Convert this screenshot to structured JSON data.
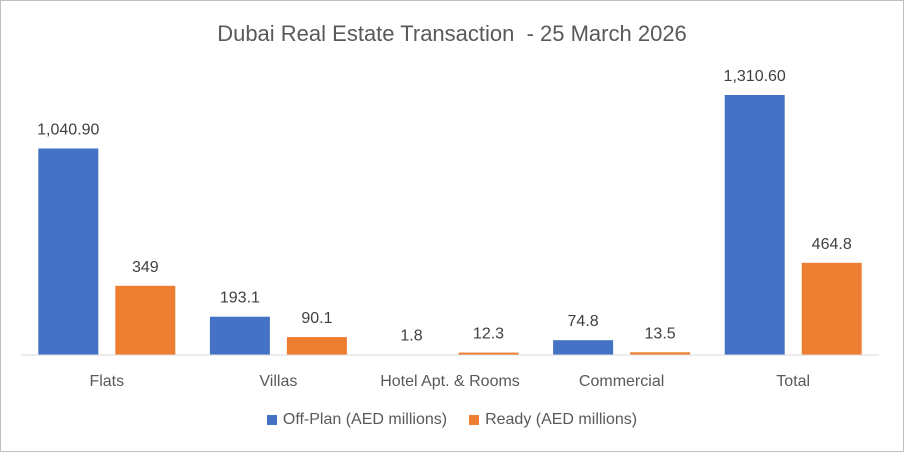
{
  "chart_data": {
    "type": "bar",
    "title": "Dubai Real Estate Transaction  - 25 March 2026",
    "categories": [
      "Flats",
      "Villas",
      "Hotel Apt. & Rooms",
      "Commercial",
      "Total"
    ],
    "series": [
      {
        "name": "Off-Plan (AED millions)",
        "color": "#4472C4",
        "values": [
          1040.9,
          193.1,
          1.8,
          74.8,
          1310.6
        ],
        "labels": [
          "1,040.90",
          "193.1",
          "1.8",
          "74.8",
          "1,310.60"
        ]
      },
      {
        "name": "Ready (AED millions)",
        "color": "#ED7D31",
        "values": [
          349,
          90.1,
          12.3,
          13.5,
          464.8
        ],
        "labels": [
          "349",
          "90.1",
          "12.3",
          "13.5",
          "464.8"
        ]
      }
    ],
    "xlabel": "",
    "ylabel": "",
    "ylim": [
      0,
      1310.6
    ],
    "grid": false,
    "legend_position": "bottom"
  }
}
